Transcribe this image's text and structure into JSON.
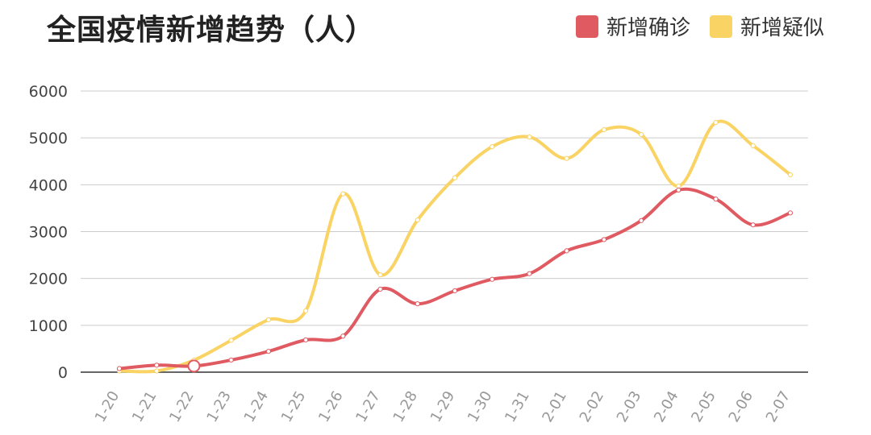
{
  "chart_data": {
    "type": "line",
    "title": "全国疫情新增趋势（人）",
    "xlabel": "",
    "ylabel": "",
    "x": [
      "1-20",
      "1-21",
      "1-22",
      "1-23",
      "1-24",
      "1-25",
      "1-26",
      "1-27",
      "1-28",
      "1-29",
      "1-30",
      "1-31",
      "2-01",
      "2-02",
      "2-03",
      "2-04",
      "2-05",
      "2-06",
      "2-07"
    ],
    "y_ticks": [
      "0",
      "1000",
      "2000",
      "3000",
      "4000",
      "5000",
      "6000"
    ],
    "ylim": [
      0,
      6000
    ],
    "grid": true,
    "legend": "top-right",
    "series": [
      {
        "name": "新增确诊",
        "color": "#e05a62",
        "values": [
          77,
          149,
          131,
          259,
          444,
          688,
          769,
          1771,
          1459,
          1737,
          1982,
          2102,
          2590,
          2829,
          3235,
          3887,
          3694,
          3143,
          3399
        ]
      },
      {
        "name": "新增疑似",
        "color": "#f9d363",
        "values": [
          27,
          26,
          257,
          680,
          1118,
          1309,
          3806,
          2077,
          3248,
          4148,
          4812,
          5019,
          4562,
          5173,
          5072,
          3971,
          5328,
          4833,
          4214
        ]
      }
    ]
  }
}
